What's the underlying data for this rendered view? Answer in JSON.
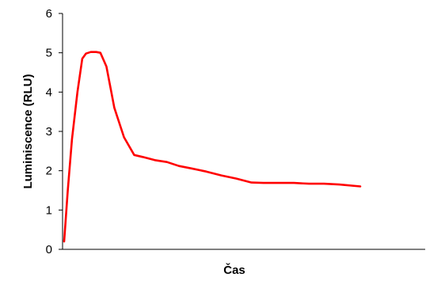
{
  "chart_data": {
    "type": "line",
    "xlabel": "Čas",
    "ylabel": "Luminiscence (RLU)",
    "ylim": [
      0,
      6
    ],
    "yticks": [
      "0",
      "1",
      "2",
      "3",
      "4",
      "5",
      "6"
    ],
    "grid": false,
    "legend": "none",
    "x_ticks_shown": false,
    "series": [
      {
        "color": "#ff0000",
        "x": [
          0,
          0.6,
          1.3,
          2.2,
          3,
          3.6,
          4.4,
          5.3,
          6,
          7,
          8.3,
          9.9,
          11.6,
          13,
          15,
          17,
          19,
          21,
          23.5,
          26,
          28.5,
          31,
          33,
          35.5,
          38,
          40.5,
          43,
          45.5,
          49
        ],
        "y": [
          0.2,
          1.5,
          2.8,
          4,
          4.85,
          4.98,
          5.02,
          5.02,
          5.0,
          4.65,
          3.6,
          2.85,
          2.4,
          2.35,
          2.27,
          2.22,
          2.12,
          2.06,
          1.98,
          1.88,
          1.8,
          1.7,
          1.69,
          1.69,
          1.69,
          1.67,
          1.67,
          1.65,
          1.6
        ]
      }
    ],
    "xlim": [
      0,
      60
    ]
  }
}
